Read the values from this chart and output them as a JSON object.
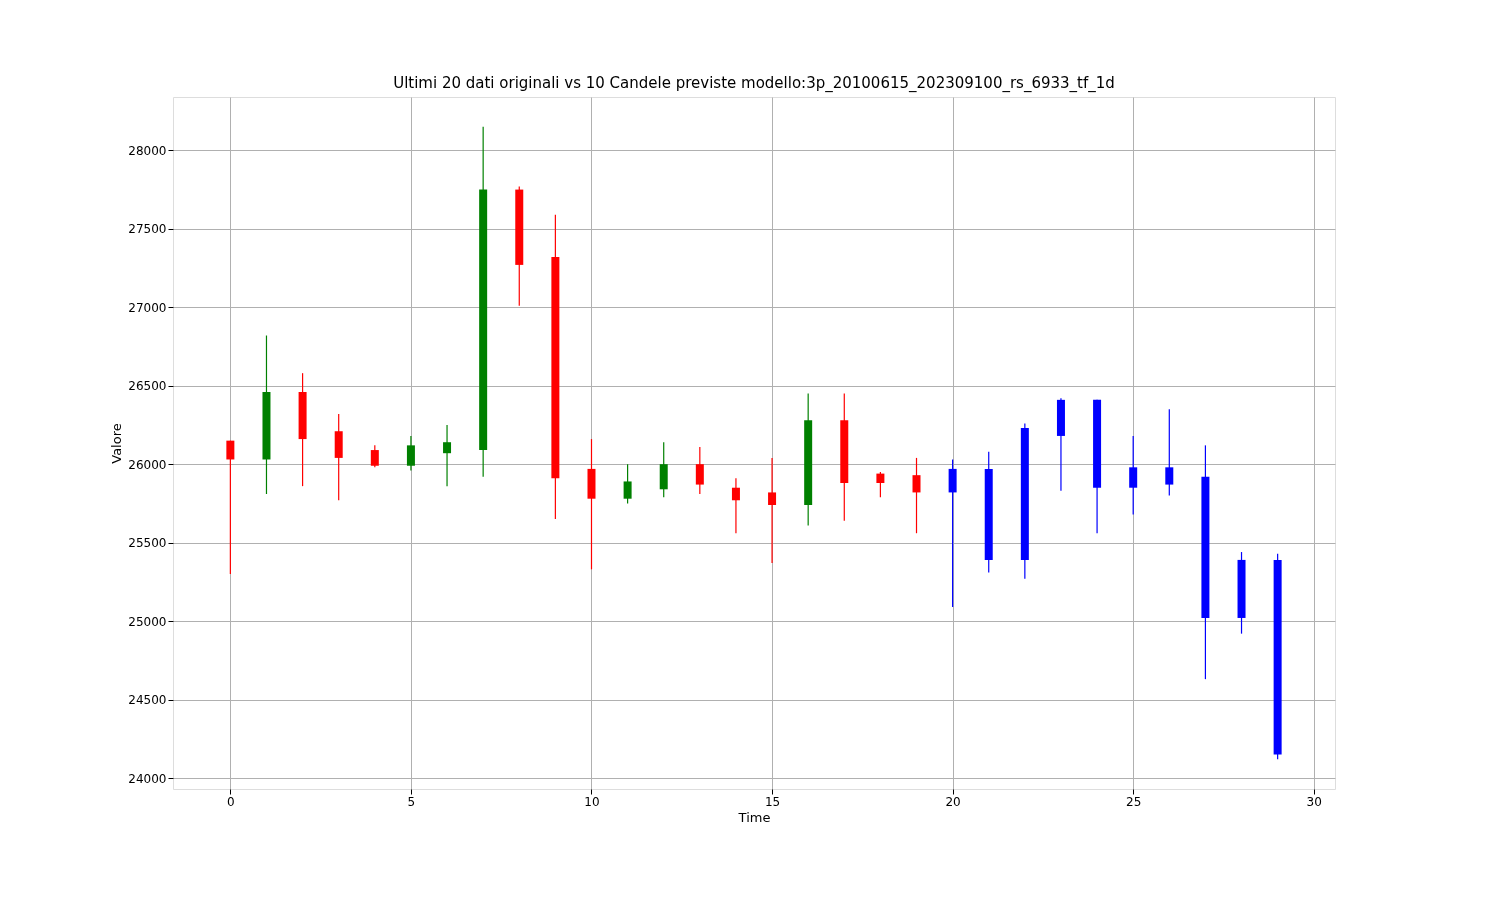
{
  "chart_data": {
    "type": "candlestick",
    "title": "Ultimi 20 dati originali vs 10 Candele previste modello:3p_20100615_202309100_rs_6933_tf_1d",
    "xlabel": "Time",
    "ylabel": "Valore",
    "x": [
      0,
      1,
      2,
      3,
      4,
      5,
      6,
      7,
      8,
      9,
      10,
      11,
      12,
      13,
      14,
      15,
      16,
      17,
      18,
      19,
      20,
      21,
      22,
      23,
      24,
      25,
      26,
      27,
      28,
      29
    ],
    "ohlc": [
      [
        26150,
        26150,
        25300,
        26030
      ],
      [
        26030,
        26820,
        25810,
        26460
      ],
      [
        26460,
        26580,
        25860,
        26160
      ],
      [
        26210,
        26320,
        25770,
        26040
      ],
      [
        26090,
        26120,
        25980,
        25990
      ],
      [
        25990,
        26180,
        25960,
        26120
      ],
      [
        26070,
        26250,
        25860,
        26140
      ],
      [
        26090,
        28150,
        25920,
        27750
      ],
      [
        27750,
        27770,
        27010,
        27270
      ],
      [
        27320,
        27590,
        25650,
        25910
      ],
      [
        25970,
        26160,
        25330,
        25780
      ],
      [
        25780,
        26000,
        25750,
        25890
      ],
      [
        25840,
        26140,
        25790,
        26000
      ],
      [
        26000,
        26110,
        25810,
        25870
      ],
      [
        25850,
        25910,
        25560,
        25770
      ],
      [
        25820,
        26040,
        25370,
        25740
      ],
      [
        25740,
        26450,
        25610,
        26280
      ],
      [
        26280,
        26450,
        25640,
        25880
      ],
      [
        25940,
        25950,
        25790,
        25880
      ],
      [
        25930,
        26040,
        25560,
        25820
      ],
      [
        25820,
        26030,
        25090,
        25970
      ],
      [
        25970,
        26080,
        25310,
        25390
      ],
      [
        25390,
        26260,
        25270,
        26230
      ],
      [
        26180,
        26420,
        25830,
        26410
      ],
      [
        26410,
        26410,
        25560,
        25850
      ],
      [
        25850,
        26180,
        25680,
        25980
      ],
      [
        25980,
        26350,
        25800,
        25870
      ],
      [
        25920,
        26120,
        24630,
        25020
      ],
      [
        25020,
        25440,
        24920,
        25390
      ],
      [
        25390,
        25430,
        24120,
        24150
      ]
    ],
    "colors": [
      "#ff0000",
      "#008000",
      "#ff0000",
      "#ff0000",
      "#ff0000",
      "#008000",
      "#008000",
      "#008000",
      "#ff0000",
      "#ff0000",
      "#ff0000",
      "#008000",
      "#008000",
      "#ff0000",
      "#ff0000",
      "#ff0000",
      "#008000",
      "#ff0000",
      "#ff0000",
      "#ff0000",
      "#0000ff",
      "#0000ff",
      "#0000ff",
      "#0000ff",
      "#0000ff",
      "#0000ff",
      "#0000ff",
      "#0000ff",
      "#0000ff",
      "#0000ff"
    ],
    "xlim": [
      -1.45,
      30.45
    ],
    "ylim": [
      23930,
      28340
    ],
    "xticks": [
      0,
      5,
      10,
      15,
      20,
      25,
      30
    ],
    "yticks": [
      24000,
      24500,
      25000,
      25500,
      26000,
      26500,
      27000,
      27500,
      28000
    ],
    "grid": true
  }
}
